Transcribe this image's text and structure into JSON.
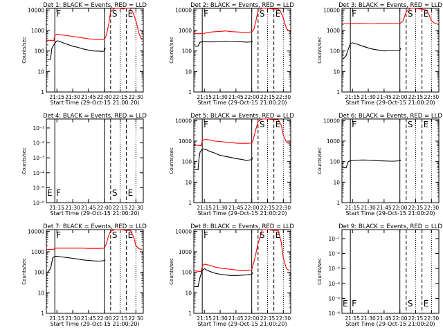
{
  "chart_data": [
    {
      "type": "line",
      "title": "Det 1: BLACK = Events, RED = LLD",
      "x_label": "Start Time (29-Oct-15 21:00:20)",
      "y_label": "Counts/sec",
      "y_scale": "log",
      "y_ticks": [
        "1",
        "10",
        "100",
        "1000",
        "10000"
      ],
      "x_ticks": [
        "21:15",
        "21:30",
        "21:45",
        "22:00",
        "22:15",
        "22:30"
      ],
      "ylim": [
        1,
        12000
      ],
      "xlim": [
        "21:05",
        "22:37"
      ],
      "markers": [
        {
          "label": "F",
          "time": "21:13"
        },
        {
          "label": "S",
          "time": "22:06"
        },
        {
          "label": "E",
          "time": "22:21"
        }
      ],
      "series": [
        {
          "color": "#ff0000",
          "x": [
            "21:05",
            "21:10",
            "21:12",
            "21:13",
            "21:15",
            "21:20",
            "21:25",
            "21:30",
            "21:35",
            "21:40",
            "21:45",
            "21:50",
            "21:55",
            "21:58",
            "22:00",
            "22:01",
            "22:02",
            "22:04",
            "22:06",
            "22:10",
            "22:15",
            "22:18",
            "22:20",
            "22:24",
            "22:27",
            "22:30",
            "22:33",
            "22:35",
            "22:36"
          ],
          "y": [
            330,
            330,
            320,
            560,
            650,
            600,
            560,
            510,
            470,
            430,
            390,
            370,
            360,
            360,
            370,
            450,
            600,
            1800,
            8000,
            12000,
            12000,
            11000,
            12000,
            12000,
            8000,
            3000,
            700,
            400,
            350
          ]
        },
        {
          "color": "#000000",
          "x": [
            "21:05",
            "21:06",
            "21:09",
            "21:10",
            "21:11",
            "21:13",
            "21:14",
            "21:15",
            "21:17",
            "21:20",
            "21:25",
            "21:30",
            "21:35",
            "21:40",
            "21:45",
            "21:50",
            "21:55",
            "21:58",
            "22:00",
            "22:01"
          ],
          "y": [
            null,
            40,
            40,
            120,
            160,
            230,
            280,
            310,
            300,
            260,
            210,
            170,
            150,
            125,
            110,
            100,
            98,
            95,
            100,
            140
          ]
        }
      ]
    },
    {
      "type": "line",
      "title": "Det 2: BLACK = Events, RED = LLD",
      "x_label": "Start Time (29-Oct-15 21:00:20)",
      "y_label": "Counts/sec",
      "y_scale": "log",
      "y_ticks": [
        "1",
        "10",
        "100",
        "1000",
        "10000"
      ],
      "x_ticks": [
        "21:15",
        "21:30",
        "21:45",
        "22:00",
        "22:15",
        "22:30"
      ],
      "ylim": [
        1,
        12000
      ],
      "xlim": [
        "21:05",
        "22:37"
      ],
      "markers": [
        {
          "label": "F",
          "time": "21:13"
        },
        {
          "label": "S",
          "time": "22:06"
        },
        {
          "label": "E",
          "time": "22:21"
        }
      ],
      "series": [
        {
          "color": "#ff0000",
          "x": [
            "21:05",
            "21:10",
            "21:15",
            "21:20",
            "21:25",
            "21:30",
            "21:35",
            "21:40",
            "21:45",
            "21:50",
            "21:55",
            "22:00",
            "22:02",
            "22:04",
            "22:06",
            "22:10",
            "22:15",
            "22:20",
            "22:25",
            "22:27",
            "22:30",
            "22:33",
            "22:36"
          ],
          "y": [
            700,
            690,
            720,
            820,
            870,
            900,
            950,
            880,
            850,
            820,
            800,
            850,
            1100,
            3000,
            9000,
            12000,
            12000,
            11000,
            11000,
            9000,
            4000,
            1200,
            900
          ]
        },
        {
          "color": "#000000",
          "x": [
            "21:05",
            "21:06",
            "21:09",
            "21:11",
            "21:13",
            "21:15",
            "21:20",
            "21:25",
            "21:30",
            "21:35",
            "21:40",
            "21:45",
            "21:50",
            "21:55",
            "22:00",
            "22:01"
          ],
          "y": [
            null,
            170,
            170,
            270,
            280,
            280,
            275,
            280,
            290,
            300,
            290,
            285,
            280,
            270,
            280,
            300
          ]
        }
      ]
    },
    {
      "type": "line",
      "title": "Det 3: BLACK = Events, RED = LLD",
      "x_label": "Start Time (29-Oct-15 21:00:20)",
      "y_label": "Counts/sec",
      "y_scale": "log",
      "y_ticks": [
        "1",
        "10",
        "100",
        "1000",
        "10000"
      ],
      "x_ticks": [
        "21:15",
        "21:30",
        "21:45",
        "22:00",
        "22:15",
        "22:30"
      ],
      "ylim": [
        1,
        12000
      ],
      "xlim": [
        "21:05",
        "22:37"
      ],
      "markers": [
        {
          "label": "F",
          "time": "21:13"
        },
        {
          "label": "S",
          "time": "22:06"
        },
        {
          "label": "E",
          "time": "22:21"
        }
      ],
      "series": [
        {
          "color": "#ff0000",
          "x": [
            "21:05",
            "21:10",
            "21:15",
            "21:20",
            "21:25",
            "21:30",
            "21:35",
            "21:40",
            "21:45",
            "21:50",
            "21:55",
            "22:00",
            "22:03",
            "22:06",
            "22:10",
            "22:15",
            "22:20",
            "22:25",
            "22:27",
            "22:30",
            "22:33",
            "22:36"
          ],
          "y": [
            2100,
            2100,
            2150,
            2150,
            2150,
            2100,
            2100,
            2150,
            2150,
            2150,
            2100,
            2150,
            3000,
            8000,
            12000,
            12000,
            11000,
            10000,
            7000,
            3000,
            2200,
            2100
          ]
        },
        {
          "color": "#000000",
          "x": [
            "21:05",
            "21:06",
            "21:09",
            "21:11",
            "21:13",
            "21:15",
            "21:20",
            "21:25",
            "21:30",
            "21:35",
            "21:40",
            "21:45",
            "21:50",
            "21:55",
            "22:00",
            "22:01"
          ],
          "y": [
            null,
            40,
            60,
            120,
            230,
            250,
            210,
            170,
            140,
            120,
            110,
            100,
            105,
            105,
            110,
            140
          ]
        }
      ]
    },
    {
      "type": "line",
      "title": "Det 4: BLACK = Events, RED = LLD",
      "x_label": "Start Time (29-Oct-15 21:00:20)",
      "y_label": "Counts/sec",
      "y_scale": "log",
      "y_ticks": [
        "10⁻⁶",
        "10⁻⁵",
        "10⁻⁴",
        "10⁻³",
        "10⁻²",
        "10⁻¹"
      ],
      "x_ticks": [
        "21:15",
        "21:30",
        "21:45",
        "22:00",
        "22:15",
        "22:30"
      ],
      "xlim": [
        "21:05",
        "22:37"
      ],
      "markers": [
        {
          "label": "E",
          "time": "21:06"
        },
        {
          "label": "F",
          "time": "21:13"
        },
        {
          "label": "S",
          "time": "22:06"
        },
        {
          "label": "E",
          "time": "22:21"
        }
      ],
      "series": []
    },
    {
      "type": "line",
      "title": "Det 5: BLACK = Events, RED = LLD",
      "x_label": "Start Time (29-Oct-15 21:00:20)",
      "y_label": "Counts/sec",
      "y_scale": "log",
      "y_ticks": [
        "1",
        "10",
        "100",
        "1000",
        "10000"
      ],
      "x_ticks": [
        "21:15",
        "21:30",
        "21:45",
        "22:00",
        "22:15",
        "22:30"
      ],
      "ylim": [
        1,
        12000
      ],
      "xlim": [
        "21:05",
        "22:37"
      ],
      "markers": [
        {
          "label": "F",
          "time": "21:13"
        },
        {
          "label": "S",
          "time": "22:06"
        },
        {
          "label": "E",
          "time": "22:21"
        }
      ],
      "series": [
        {
          "color": "#ff0000",
          "x": [
            "21:05",
            "21:10",
            "21:12",
            "21:13",
            "21:15",
            "21:20",
            "21:25",
            "21:30",
            "21:35",
            "21:40",
            "21:45",
            "21:50",
            "21:55",
            "22:00",
            "22:01",
            "22:03",
            "22:06",
            "22:10",
            "22:15",
            "22:20",
            "22:25",
            "22:28",
            "22:30",
            "22:33",
            "22:36"
          ],
          "y": [
            650,
            620,
            600,
            1050,
            1200,
            1150,
            1000,
            950,
            900,
            850,
            800,
            780,
            780,
            800,
            1000,
            2500,
            9000,
            12000,
            12000,
            11000,
            11000,
            6000,
            2000,
            850,
            750
          ]
        },
        {
          "color": "#000000",
          "x": [
            "21:05",
            "21:06",
            "21:09",
            "21:10",
            "21:11",
            "21:13",
            "21:14",
            "21:15",
            "21:17",
            "21:20",
            "21:25",
            "21:30",
            "21:35",
            "21:40",
            "21:45",
            "21:50",
            "21:55",
            "22:00",
            "22:01"
          ],
          "y": [
            null,
            40,
            40,
            150,
            300,
            400,
            420,
            400,
            380,
            320,
            260,
            200,
            180,
            160,
            140,
            130,
            115,
            125,
            160
          ]
        }
      ]
    },
    {
      "type": "line",
      "title": "Det 6: BLACK = Events, RED = LLD",
      "x_label": "Start Time (29-Oct-15 21:00:20)",
      "y_label": "Counts/sec",
      "y_scale": "log",
      "y_ticks": [
        "1",
        "10",
        "100",
        "1000",
        "10000"
      ],
      "x_ticks": [
        "21:15",
        "21:30",
        "21:45",
        "22:00",
        "22:15",
        "22:30"
      ],
      "ylim": [
        1,
        12000
      ],
      "xlim": [
        "21:05",
        "22:37"
      ],
      "markers": [
        {
          "label": "F",
          "time": "21:13"
        },
        {
          "label": "S",
          "time": "22:06"
        },
        {
          "label": "E",
          "time": "22:21"
        }
      ],
      "series": [
        {
          "color": "#000000",
          "x": [
            "21:05",
            "21:06",
            "21:09",
            "21:11",
            "21:13",
            "21:15",
            "21:20",
            "21:25",
            "21:30",
            "21:35",
            "21:40",
            "21:45",
            "21:50",
            "21:55",
            "22:00",
            "22:01"
          ],
          "y": [
            null,
            50,
            50,
            100,
            110,
            115,
            118,
            120,
            118,
            115,
            110,
            108,
            105,
            105,
            110,
            120
          ]
        }
      ]
    },
    {
      "type": "line",
      "title": "Det 7: BLACK = Events, RED = LLD",
      "x_label": "Start Time (29-Oct-15 21:00:20)",
      "y_label": "Counts/sec",
      "y_scale": "log",
      "y_ticks": [
        "1",
        "10",
        "100",
        "1000",
        "10000"
      ],
      "x_ticks": [
        "21:15",
        "21:30",
        "21:45",
        "22:00",
        "22:15",
        "22:30"
      ],
      "ylim": [
        1,
        12000
      ],
      "xlim": [
        "21:05",
        "22:37"
      ],
      "markers": [
        {
          "label": "F",
          "time": "21:13"
        },
        {
          "label": "S",
          "time": "22:06"
        },
        {
          "label": "E",
          "time": "22:21"
        }
      ],
      "series": [
        {
          "color": "#ff0000",
          "x": [
            "21:05",
            "21:10",
            "21:12",
            "21:13",
            "21:15",
            "21:20",
            "21:25",
            "21:30",
            "21:35",
            "21:40",
            "21:45",
            "21:50",
            "21:55",
            "22:00",
            "22:02",
            "22:04",
            "22:06",
            "22:10",
            "22:15",
            "22:20",
            "22:25",
            "22:28",
            "22:30",
            "22:33",
            "22:36"
          ],
          "y": [
            1300,
            1300,
            1300,
            1500,
            1500,
            1500,
            1500,
            1500,
            1500,
            1500,
            1450,
            1450,
            1450,
            1500,
            2500,
            6000,
            10000,
            12000,
            12000,
            11000,
            11000,
            5000,
            2000,
            1400,
            1300
          ]
        },
        {
          "color": "#000000",
          "x": [
            "21:05",
            "21:06",
            "21:09",
            "21:11",
            "21:13",
            "21:15",
            "21:20",
            "21:25",
            "21:30",
            "21:35",
            "21:40",
            "21:45",
            "21:50",
            "21:55",
            "22:00",
            "22:01"
          ],
          "y": [
            null,
            100,
            150,
            500,
            600,
            600,
            560,
            520,
            480,
            440,
            400,
            380,
            360,
            350,
            370,
            400
          ]
        }
      ]
    },
    {
      "type": "line",
      "title": "Det 8: BLACK = Events, RED = LLD",
      "x_label": "Start Time (29-Oct-15 21:00:20)",
      "y_label": "Counts/sec",
      "y_scale": "log",
      "y_ticks": [
        "1",
        "10",
        "100",
        "1000",
        "10000"
      ],
      "x_ticks": [
        "21:15",
        "21:30",
        "21:45",
        "22:00",
        "22:15",
        "22:30"
      ],
      "ylim": [
        1,
        12000
      ],
      "xlim": [
        "21:05",
        "22:37"
      ],
      "markers": [
        {
          "label": "F",
          "time": "21:13"
        },
        {
          "label": "S",
          "time": "22:06"
        },
        {
          "label": "E",
          "time": "22:21"
        }
      ],
      "series": [
        {
          "color": "#ff0000",
          "x": [
            "21:05",
            "21:10",
            "21:12",
            "21:13",
            "21:15",
            "21:20",
            "21:25",
            "21:30",
            "21:35",
            "21:40",
            "21:45",
            "21:50",
            "21:55",
            "22:00",
            "22:01",
            "22:03",
            "22:06",
            "22:10",
            "22:15",
            "22:20",
            "22:25",
            "22:28",
            "22:30",
            "22:33",
            "22:36"
          ],
          "y": [
            120,
            110,
            110,
            200,
            250,
            220,
            180,
            160,
            150,
            140,
            130,
            120,
            120,
            130,
            200,
            500,
            2500,
            12000,
            12000,
            11000,
            11000,
            3000,
            500,
            150,
            120
          ]
        },
        {
          "color": "#000000",
          "x": [
            "21:05",
            "21:06",
            "21:09",
            "21:11",
            "21:13",
            "21:15",
            "21:20",
            "21:25",
            "21:30",
            "21:35",
            "21:40",
            "21:45",
            "21:50",
            "21:55",
            "22:00",
            "22:01"
          ],
          "y": [
            null,
            20,
            20,
            60,
            120,
            150,
            110,
            90,
            80,
            75,
            70,
            70,
            72,
            75,
            80,
            100
          ]
        }
      ]
    },
    {
      "type": "line",
      "title": "Det 9: BLACK = Events, RED = LLD",
      "x_label": "Start Time (29-Oct-15 21:00:20)",
      "y_label": "Counts/sec",
      "y_scale": "log",
      "y_ticks": [
        "10⁻⁶",
        "10⁻⁵",
        "10⁻⁴",
        "10⁻³",
        "10⁻²",
        "10⁻¹"
      ],
      "x_ticks": [
        "21:15",
        "21:30",
        "21:45",
        "22:00",
        "22:15",
        "22:30"
      ],
      "xlim": [
        "21:05",
        "22:37"
      ],
      "markers": [
        {
          "label": "E",
          "time": "21:06"
        },
        {
          "label": "F",
          "time": "21:13"
        },
        {
          "label": "S",
          "time": "22:06"
        },
        {
          "label": "E",
          "time": "22:21"
        }
      ],
      "series": []
    }
  ]
}
